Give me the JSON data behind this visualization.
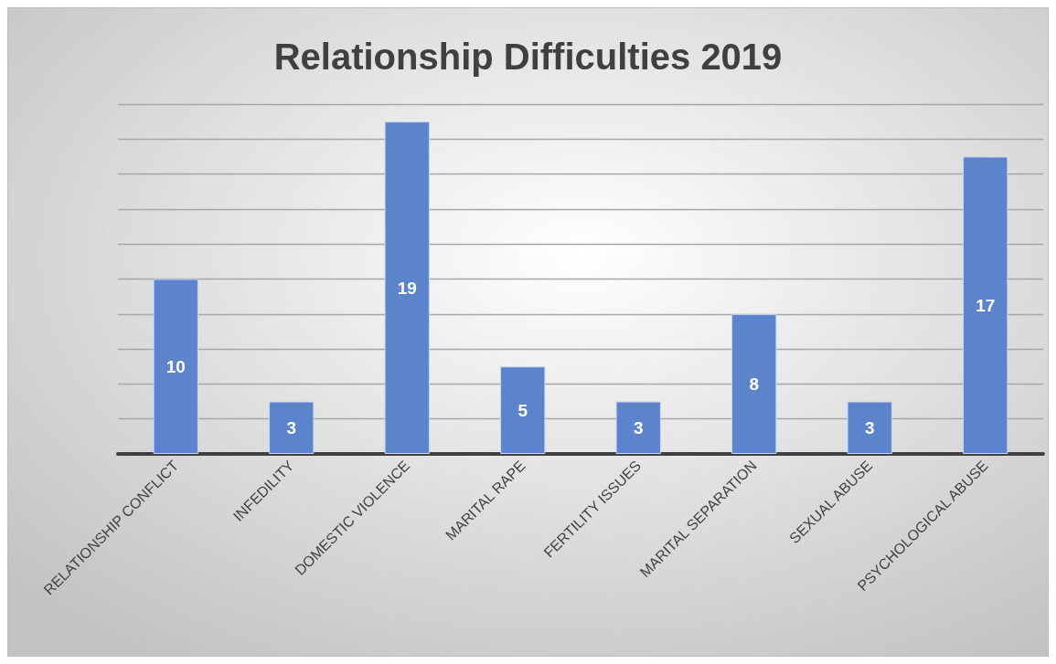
{
  "chart_data": {
    "type": "bar",
    "title": "Relationship Difficulties 2019",
    "categories": [
      "RELATIONSHIP CONFLICT",
      "INFEDILITY",
      "DOMESTIC VIOLENCE",
      "MARITAL RAPE",
      "FERTILITY ISSUES",
      "MARITAL SEPARATION",
      "SEXUAL ABUSE",
      "PSYCHOLOGICAL ABUSE"
    ],
    "values": [
      10,
      3,
      19,
      5,
      3,
      8,
      3,
      17
    ],
    "color": "#5b84cc",
    "data_labels": true,
    "ylim": [
      0,
      20
    ],
    "yticks": [
      {
        "value": 0,
        "label": null
      },
      {
        "value": 2,
        "label": null
      },
      {
        "value": 4,
        "label": null
      },
      {
        "value": 6,
        "label": null
      },
      {
        "value": 8,
        "label": null
      },
      {
        "value": 10,
        "label": null
      },
      {
        "value": 12,
        "label": null
      },
      {
        "value": 14,
        "label": null
      },
      {
        "value": 16,
        "label": null
      },
      {
        "value": 18,
        "label": null
      },
      {
        "value": 20,
        "label": null
      }
    ],
    "grid": "y",
    "tick_labels": "x"
  }
}
